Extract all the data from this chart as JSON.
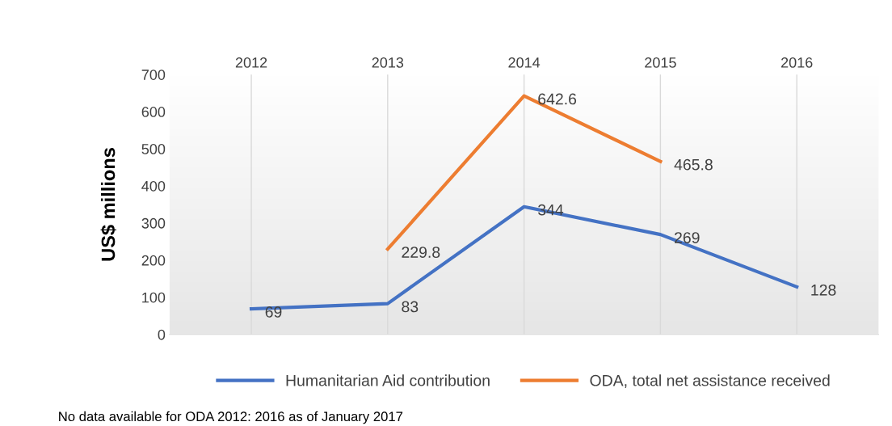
{
  "chart_data": {
    "type": "line",
    "ylabel": "US$ millions",
    "categories": [
      "2012",
      "2013",
      "2014",
      "2015",
      "2016"
    ],
    "series": [
      {
        "name": "Humanitarian Aid contribution",
        "color": "#4472c4",
        "values": [
          69,
          83,
          344,
          269,
          128
        ]
      },
      {
        "name": "ODA, total net assistance received",
        "color": "#ed7d31",
        "values": [
          null,
          229.8,
          642.6,
          465.8,
          null
        ]
      }
    ],
    "ylim": [
      0,
      700
    ],
    "yticks": [
      0,
      100,
      200,
      300,
      400,
      500,
      600,
      700
    ],
    "grid": "x",
    "legend": "bottom",
    "data_labels": true,
    "marker": "none",
    "line_style": "solid",
    "annotations": [
      "No data available for ODA 2012: 2016 as of January 2017"
    ]
  }
}
